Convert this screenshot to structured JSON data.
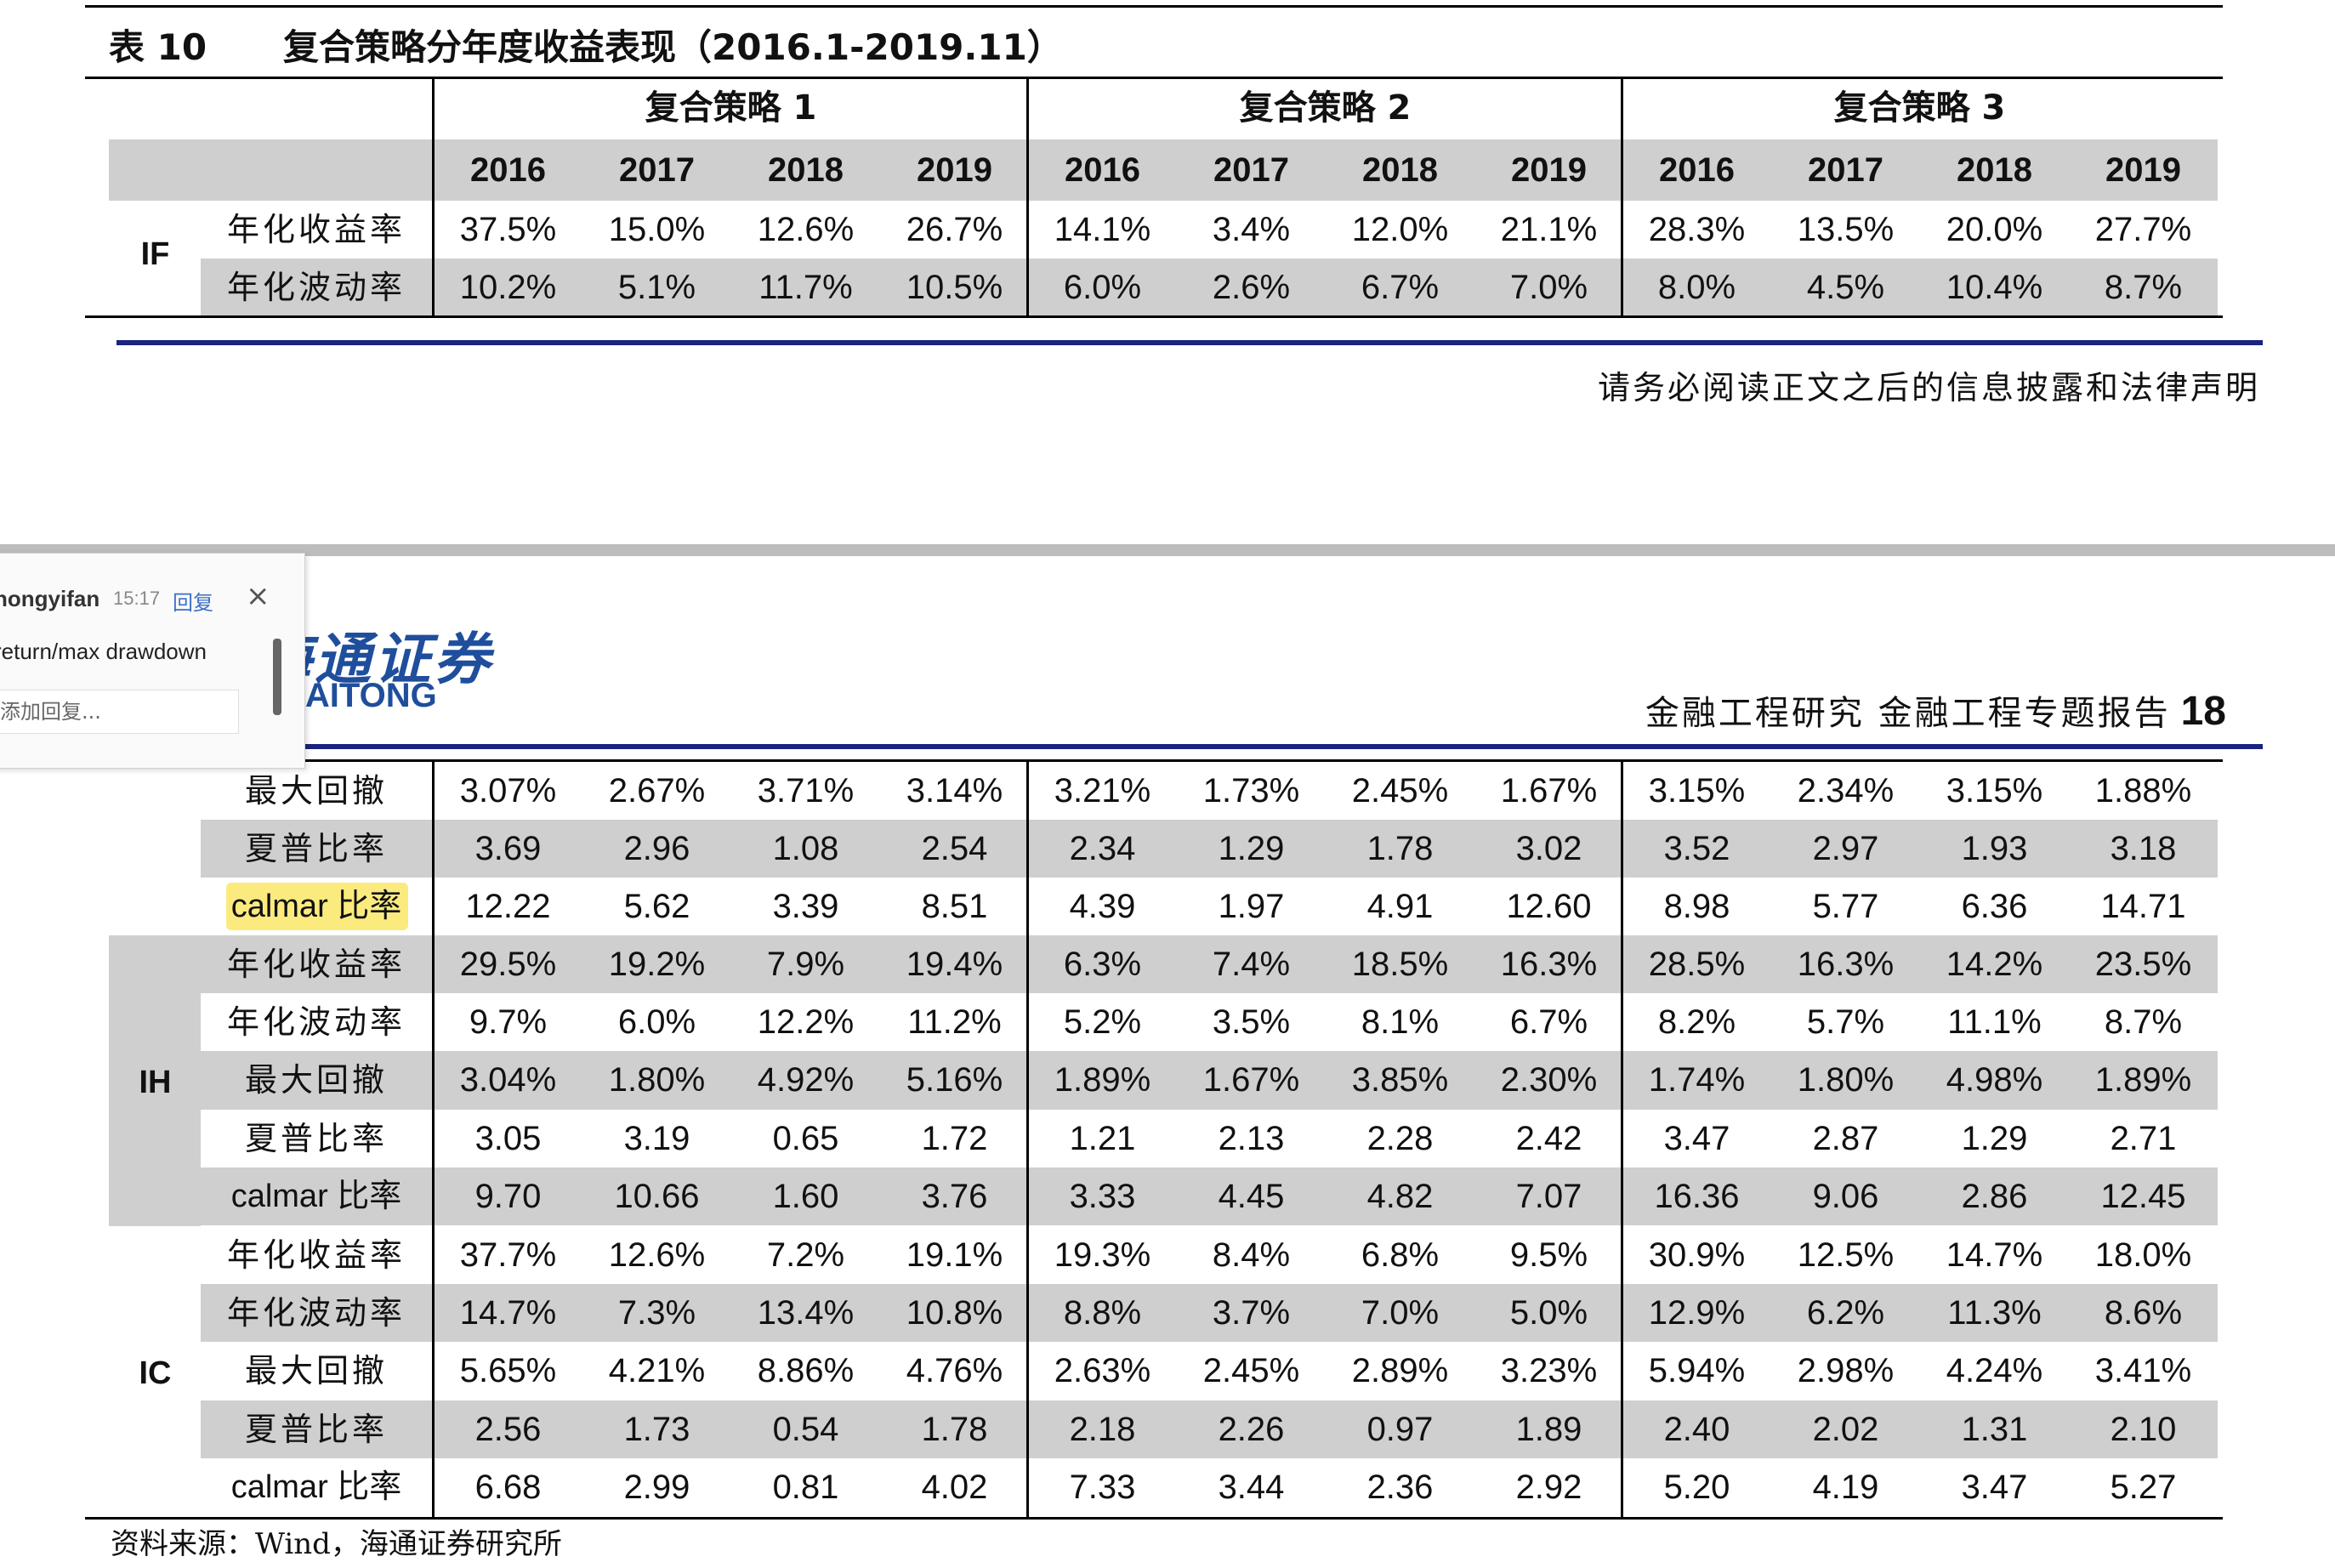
{
  "caption": {
    "label": "表 10",
    "title": "复合策略分年度收益表现（2016.1-2019.11）"
  },
  "groups": [
    "复合策略 1",
    "复合策略 2",
    "复合策略 3"
  ],
  "years": [
    "2016",
    "2017",
    "2018",
    "2019",
    "2016",
    "2017",
    "2018",
    "2019",
    "2016",
    "2017",
    "2018",
    "2019"
  ],
  "if_rows": [
    {
      "metric": "年化收益率",
      "values": [
        "37.5%",
        "15.0%",
        "12.6%",
        "26.7%",
        "14.1%",
        "3.4%",
        "12.0%",
        "21.1%",
        "28.3%",
        "13.5%",
        "20.0%",
        "27.7%"
      ]
    },
    {
      "metric": "年化波动率",
      "values": [
        "10.2%",
        "5.1%",
        "11.7%",
        "10.5%",
        "6.0%",
        "2.6%",
        "6.7%",
        "7.0%",
        "8.0%",
        "4.5%",
        "10.4%",
        "8.7%"
      ]
    }
  ],
  "if_index": "IF",
  "disclaimer": "请务必阅读正文之后的信息披露和法律声明",
  "header": {
    "report_title": "金融工程研究 金融工程专题报告",
    "page_number": "18"
  },
  "logo": {
    "cn": "海通证券",
    "en": "HAITONG"
  },
  "comment": {
    "user": "hongyifan",
    "time": "15:17",
    "reply": "回复",
    "close": "×",
    "text": "return/max drawdown",
    "placeholder": "添加回复..."
  },
  "cont_rows": [
    {
      "metric": "最大回撤",
      "values": [
        "3.07%",
        "2.67%",
        "3.71%",
        "3.14%",
        "3.21%",
        "1.73%",
        "2.45%",
        "1.67%",
        "3.15%",
        "2.34%",
        "3.15%",
        "1.88%"
      ]
    },
    {
      "metric": "夏普比率",
      "values": [
        "3.69",
        "2.96",
        "1.08",
        "2.54",
        "2.34",
        "1.29",
        "1.78",
        "3.02",
        "3.52",
        "2.97",
        "1.93",
        "3.18"
      ]
    },
    {
      "metric": "calmar 比率",
      "values": [
        "12.22",
        "5.62",
        "3.39",
        "8.51",
        "4.39",
        "1.97",
        "4.91",
        "12.60",
        "8.98",
        "5.77",
        "6.36",
        "14.71"
      ]
    }
  ],
  "ih_index": "IH",
  "ih_rows": [
    {
      "metric": "年化收益率",
      "values": [
        "29.5%",
        "19.2%",
        "7.9%",
        "19.4%",
        "6.3%",
        "7.4%",
        "18.5%",
        "16.3%",
        "28.5%",
        "16.3%",
        "14.2%",
        "23.5%"
      ]
    },
    {
      "metric": "年化波动率",
      "values": [
        "9.7%",
        "6.0%",
        "12.2%",
        "11.2%",
        "5.2%",
        "3.5%",
        "8.1%",
        "6.7%",
        "8.2%",
        "5.7%",
        "11.1%",
        "8.7%"
      ]
    },
    {
      "metric": "最大回撤",
      "values": [
        "3.04%",
        "1.80%",
        "4.92%",
        "5.16%",
        "1.89%",
        "1.67%",
        "3.85%",
        "2.30%",
        "1.74%",
        "1.80%",
        "4.98%",
        "1.89%"
      ]
    },
    {
      "metric": "夏普比率",
      "values": [
        "3.05",
        "3.19",
        "0.65",
        "1.72",
        "1.21",
        "2.13",
        "2.28",
        "2.42",
        "3.47",
        "2.87",
        "1.29",
        "2.71"
      ]
    },
    {
      "metric": "calmar 比率",
      "values": [
        "9.70",
        "10.66",
        "1.60",
        "3.76",
        "3.33",
        "4.45",
        "4.82",
        "7.07",
        "16.36",
        "9.06",
        "2.86",
        "12.45"
      ]
    }
  ],
  "ic_index": "IC",
  "ic_rows": [
    {
      "metric": "年化收益率",
      "values": [
        "37.7%",
        "12.6%",
        "7.2%",
        "19.1%",
        "19.3%",
        "8.4%",
        "6.8%",
        "9.5%",
        "30.9%",
        "12.5%",
        "14.7%",
        "18.0%"
      ]
    },
    {
      "metric": "年化波动率",
      "values": [
        "14.7%",
        "7.3%",
        "13.4%",
        "10.8%",
        "8.8%",
        "3.7%",
        "7.0%",
        "5.0%",
        "12.9%",
        "6.2%",
        "11.3%",
        "8.6%"
      ]
    },
    {
      "metric": "最大回撤",
      "values": [
        "5.65%",
        "4.21%",
        "8.86%",
        "4.76%",
        "2.63%",
        "2.45%",
        "2.89%",
        "3.23%",
        "5.94%",
        "2.98%",
        "4.24%",
        "3.41%"
      ]
    },
    {
      "metric": "夏普比率",
      "values": [
        "2.56",
        "1.73",
        "0.54",
        "1.78",
        "2.18",
        "2.26",
        "0.97",
        "1.89",
        "2.40",
        "2.02",
        "1.31",
        "2.10"
      ]
    },
    {
      "metric": "calmar 比率",
      "values": [
        "6.68",
        "2.99",
        "0.81",
        "4.02",
        "7.33",
        "3.44",
        "2.36",
        "2.92",
        "5.20",
        "4.19",
        "3.47",
        "5.27"
      ]
    }
  ],
  "source": "资料来源：Wind，海通证券研究所",
  "colors": {
    "row_grey": "#cfcfcf",
    "rule_blue": "#1a237e",
    "logo_blue": "#1f4e9c",
    "highlight": "#fbeb7f"
  }
}
